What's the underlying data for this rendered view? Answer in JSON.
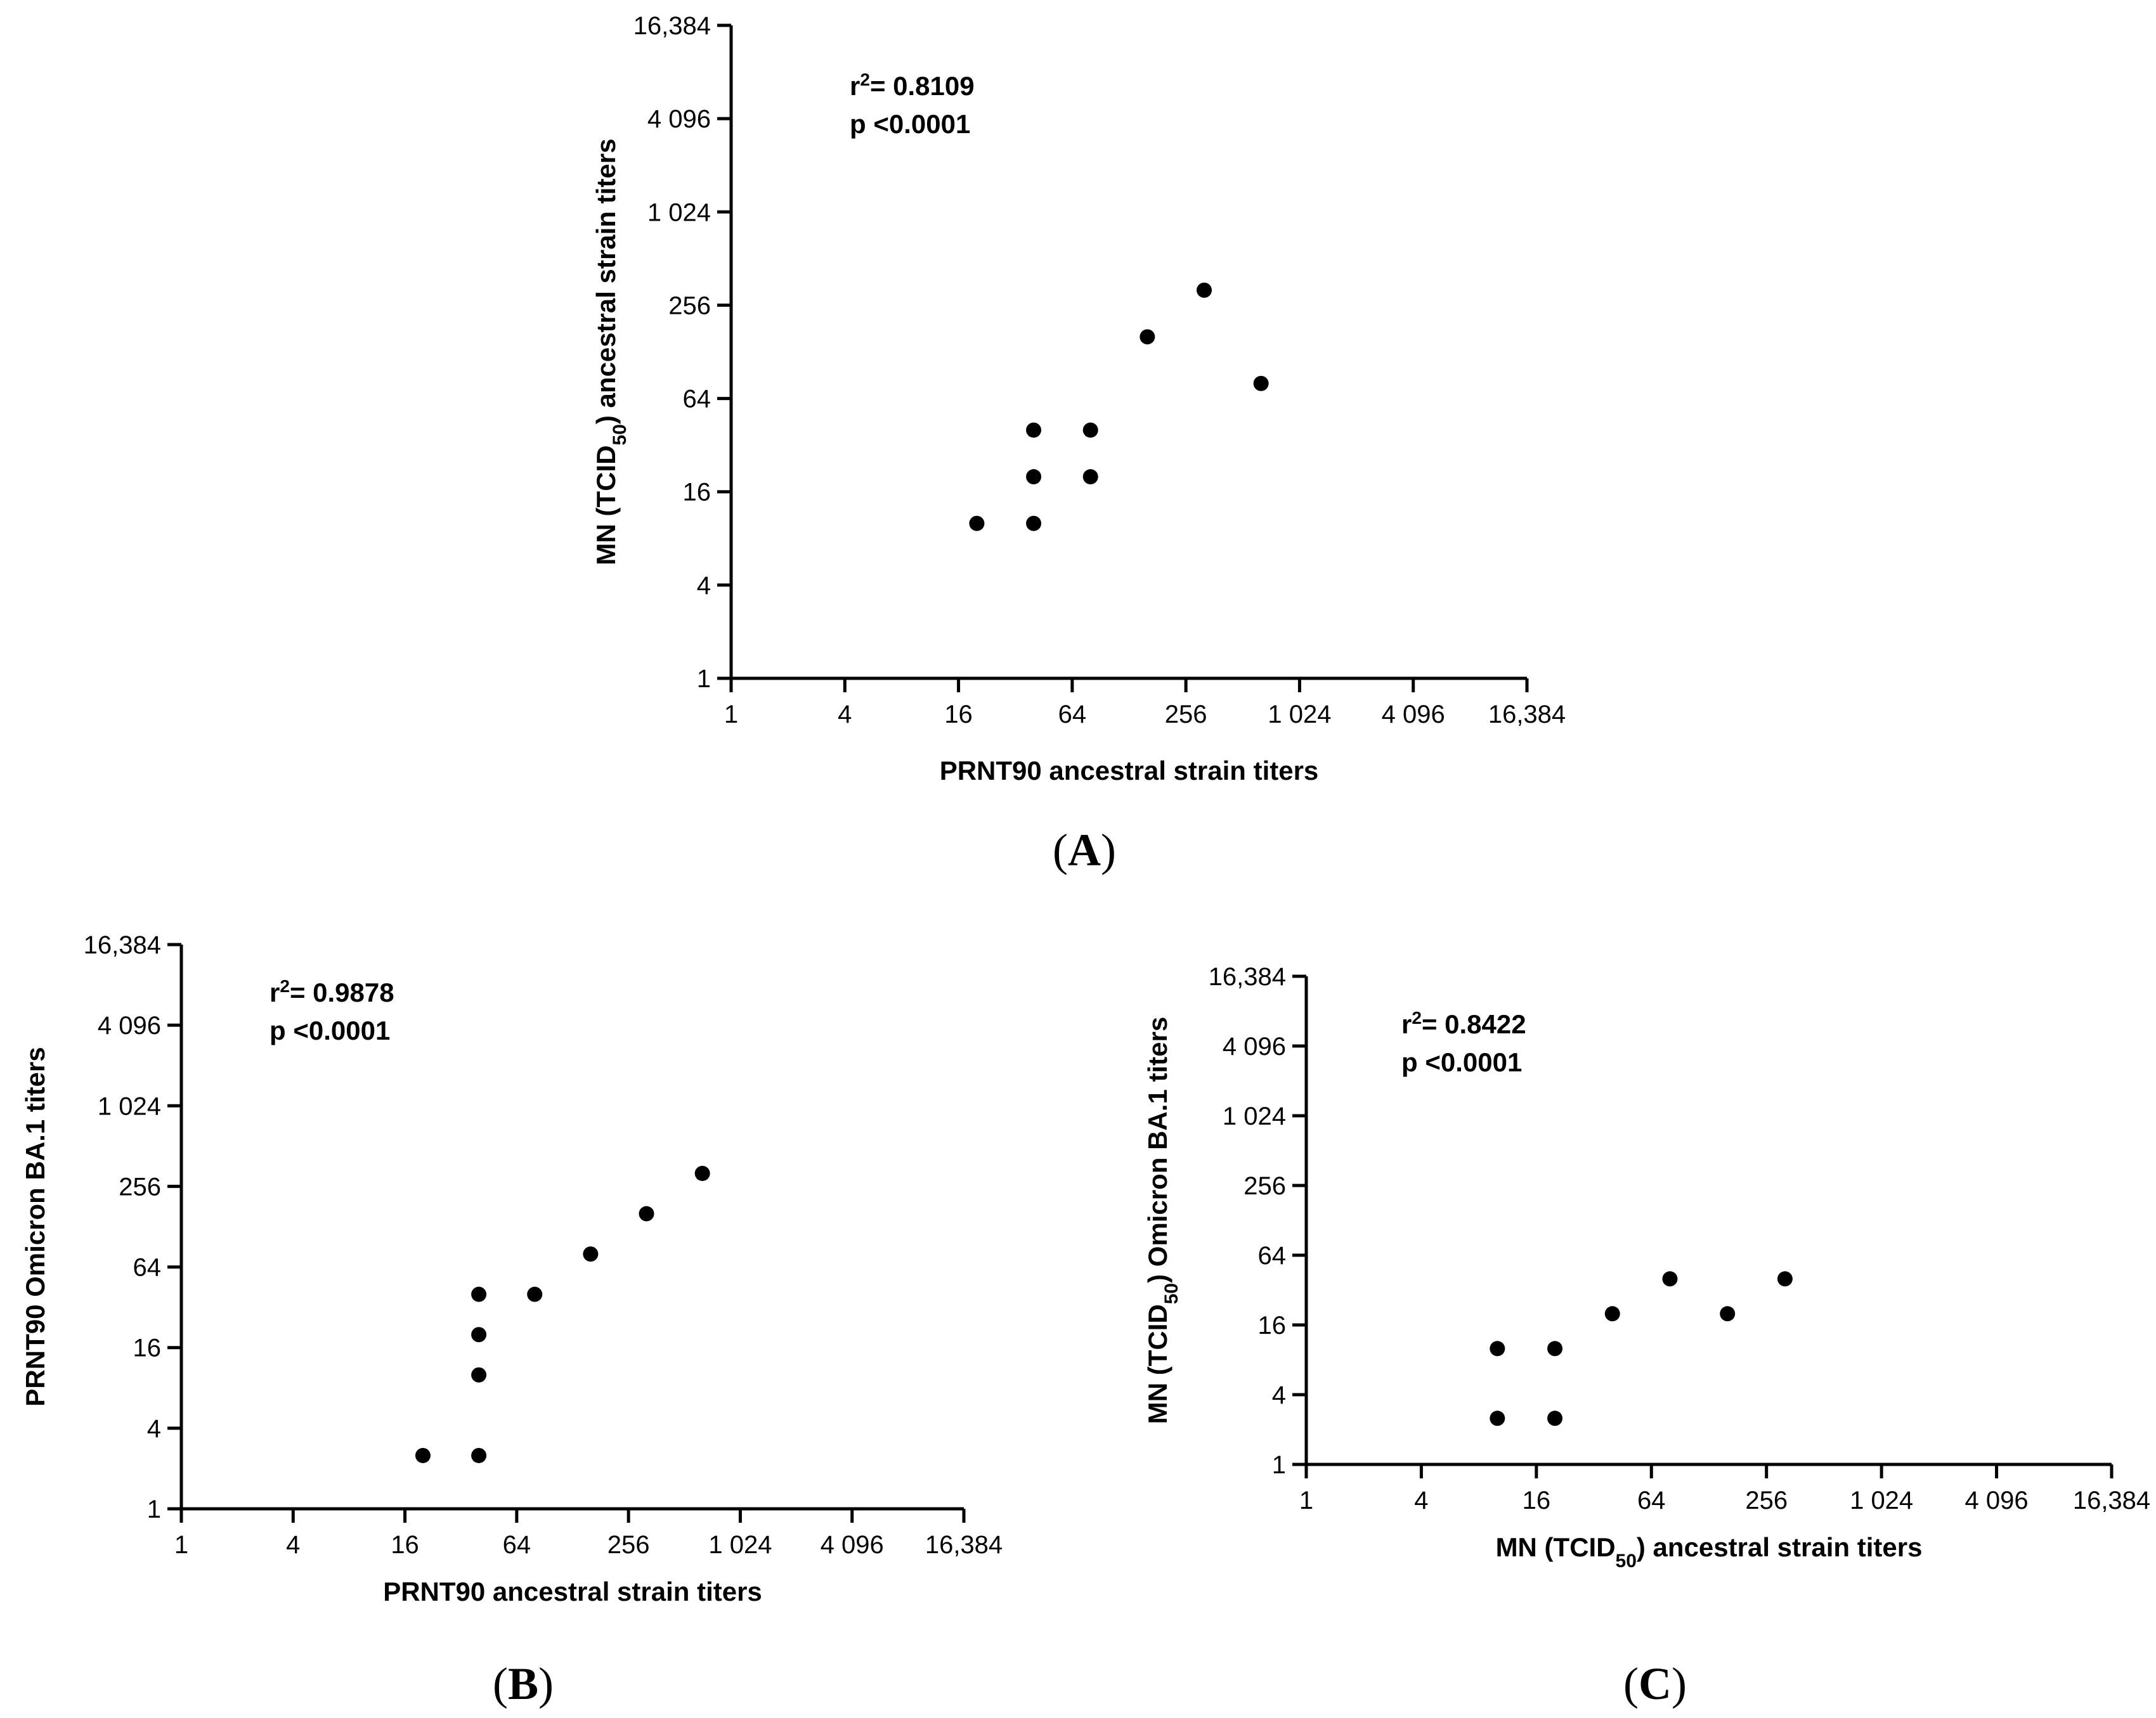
{
  "chart_data": [
    {
      "id": "A",
      "type": "scatter",
      "panel_label": "A",
      "xlabel": "PRNT90 ancestral strain titers",
      "ylabel": {
        "pre": "MN (TCID",
        "sub": "50",
        "post": ")  ancestral strain titers"
      },
      "x_ticks": [
        "1",
        "4",
        "16",
        "64",
        "256",
        "1 024",
        "4 096",
        "16,384"
      ],
      "y_ticks": [
        "1",
        "4",
        "16",
        "64",
        "256",
        "1 024",
        "4 096",
        "16,384"
      ],
      "tick_values": [
        1,
        4,
        16,
        64,
        256,
        1024,
        4096,
        16384
      ],
      "xscale": "log2",
      "yscale": "log2",
      "xlim": [
        1,
        16384
      ],
      "ylim": [
        1,
        16384
      ],
      "stats": {
        "r2_label": "r",
        "r2_sup": "2",
        "r2_value": "= 0.8109",
        "p": "p <0.0001"
      },
      "points": [
        {
          "x": 20,
          "y": 10
        },
        {
          "x": 40,
          "y": 10
        },
        {
          "x": 40,
          "y": 20
        },
        {
          "x": 40,
          "y": 40
        },
        {
          "x": 80,
          "y": 20
        },
        {
          "x": 80,
          "y": 40
        },
        {
          "x": 160,
          "y": 160
        },
        {
          "x": 320,
          "y": 320
        },
        {
          "x": 640,
          "y": 80
        }
      ]
    },
    {
      "id": "B",
      "type": "scatter",
      "panel_label": "B",
      "xlabel": "PRNT90 ancestral strain titers",
      "ylabel": {
        "pre": "PRNT90 Omicron BA.1 titers",
        "sub": "",
        "post": ""
      },
      "x_ticks": [
        "1",
        "4",
        "16",
        "64",
        "256",
        "1 024",
        "4 096",
        "16,384"
      ],
      "y_ticks": [
        "1",
        "4",
        "16",
        "64",
        "256",
        "1 024",
        "4 096",
        "16,384"
      ],
      "tick_values": [
        1,
        4,
        16,
        64,
        256,
        1024,
        4096,
        16384
      ],
      "xscale": "log2",
      "yscale": "log2",
      "xlim": [
        1,
        16384
      ],
      "ylim": [
        1,
        16384
      ],
      "stats": {
        "r2_label": "r",
        "r2_sup": "2",
        "r2_value": "= 0.9878",
        "p": "p <0.0001"
      },
      "points": [
        {
          "x": 20,
          "y": 2.5
        },
        {
          "x": 40,
          "y": 2.5
        },
        {
          "x": 40,
          "y": 10
        },
        {
          "x": 40,
          "y": 20
        },
        {
          "x": 40,
          "y": 40
        },
        {
          "x": 80,
          "y": 40
        },
        {
          "x": 160,
          "y": 80
        },
        {
          "x": 320,
          "y": 160
        },
        {
          "x": 640,
          "y": 320
        }
      ]
    },
    {
      "id": "C",
      "type": "scatter",
      "panel_label": "C",
      "xlabel": {
        "pre": "MN (TCID",
        "sub": "50",
        "post": ") ancestral strain  titers"
      },
      "ylabel": {
        "pre": "MN (TCID",
        "sub": "50",
        "post": ") Omicron BA.1 titers"
      },
      "x_ticks": [
        "1",
        "4",
        "16",
        "64",
        "256",
        "1 024",
        "4 096",
        "16,384"
      ],
      "y_ticks": [
        "1",
        "4",
        "16",
        "64",
        "256",
        "1 024",
        "4 096",
        "16,384"
      ],
      "tick_values": [
        1,
        4,
        16,
        64,
        256,
        1024,
        4096,
        16384
      ],
      "xscale": "log2",
      "yscale": "log2",
      "xlim": [
        1,
        16384
      ],
      "ylim": [
        1,
        16384
      ],
      "stats": {
        "r2_label": "r",
        "r2_sup": "2",
        "r2_value": "= 0.8422",
        "p": "p <0.0001"
      },
      "points": [
        {
          "x": 10,
          "y": 2.5
        },
        {
          "x": 10,
          "y": 10
        },
        {
          "x": 20,
          "y": 2.5
        },
        {
          "x": 20,
          "y": 10
        },
        {
          "x": 40,
          "y": 20
        },
        {
          "x": 80,
          "y": 40
        },
        {
          "x": 160,
          "y": 20
        },
        {
          "x": 320,
          "y": 40
        }
      ]
    }
  ]
}
